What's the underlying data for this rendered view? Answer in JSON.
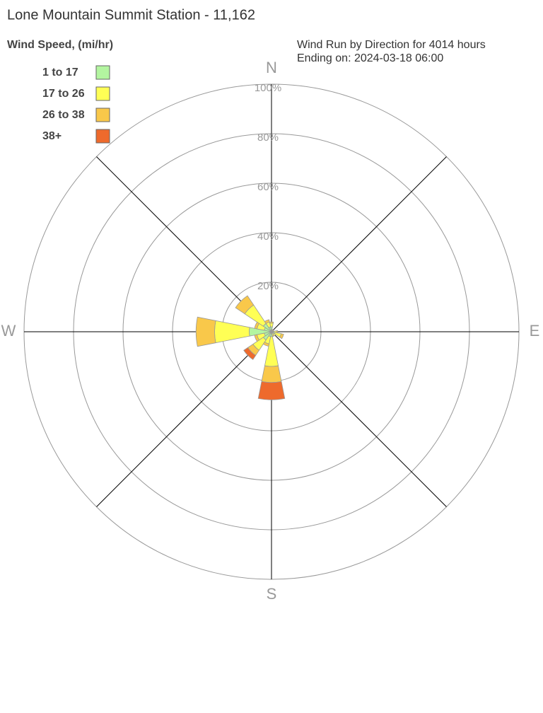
{
  "chart_data": {
    "type": "windrose",
    "title": "Lone Mountain Summit Station - 11,162",
    "subtitle": [
      "Wind Run by Direction for 4014 hours",
      "Ending on: 2024-03-18 06:00"
    ],
    "legend_title": "Wind Speed, (mi/hr)",
    "categories": [
      "N",
      null,
      null,
      null,
      "E",
      null,
      null,
      null,
      "S",
      null,
      null,
      null,
      "W",
      null,
      null,
      null
    ],
    "rlim": [
      0,
      100
    ],
    "rticks": [
      {
        "value": 20,
        "label": "20%"
      },
      {
        "value": 40,
        "label": "40%"
      },
      {
        "value": 60,
        "label": "60%"
      },
      {
        "value": 80,
        "label": "80%"
      },
      {
        "value": 100,
        "label": "100%"
      }
    ],
    "series": [
      {
        "name": "1 to 17",
        "color": "#b3f5a0",
        "values": [
          2,
          0.5,
          0.5,
          0.5,
          1,
          1.5,
          1,
          0.5,
          2,
          2,
          4,
          3,
          9,
          3,
          4,
          2
        ]
      },
      {
        "name": "17 to 26",
        "color": "#ffff55",
        "values": [
          1.5,
          0.5,
          0.5,
          0.5,
          1,
          2.5,
          1,
          1,
          12,
          3,
          5,
          3,
          14,
          3,
          9,
          2
        ]
      },
      {
        "name": "26 to 38",
        "color": "#f9c84a",
        "values": [
          0.5,
          0,
          0,
          0,
          0.5,
          1,
          0,
          0.5,
          6.5,
          1,
          2.5,
          1,
          7.5,
          1,
          4.5,
          1
        ]
      },
      {
        "name": "38+",
        "color": "#ee6a2c",
        "values": [
          0,
          0,
          0,
          0,
          0,
          0,
          0,
          0,
          7,
          0,
          2,
          0,
          0,
          0,
          0,
          0
        ]
      }
    ]
  }
}
